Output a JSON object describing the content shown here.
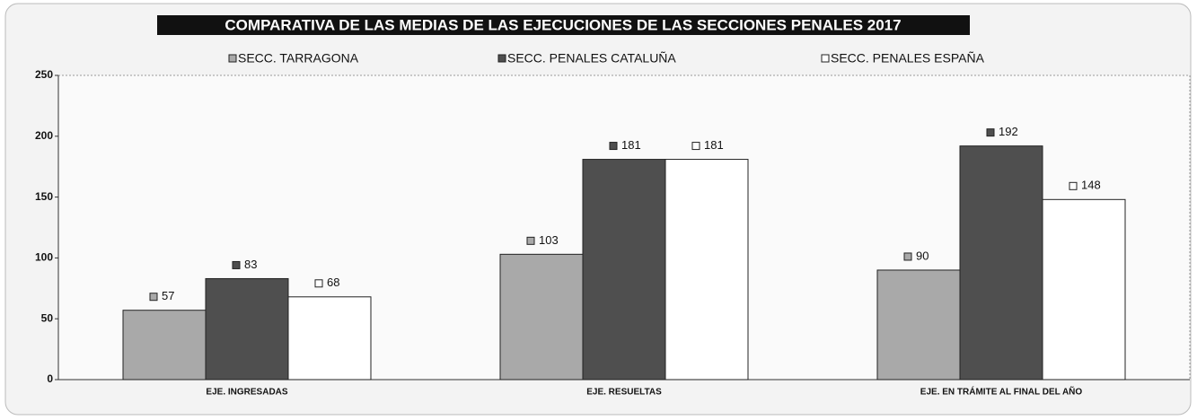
{
  "chart_data": {
    "type": "bar",
    "title": "COMPARATIVA DE LAS MEDIAS DE LAS EJECUCIONES  DE LAS SECCIONES PENALES  2017",
    "categories": [
      "EJE. INGRESADAS",
      "EJE. RESUELTAS",
      "EJE. EN TRÁMITE AL FINAL DEL AÑO"
    ],
    "series": [
      {
        "name": "SECC. TARRAGONA",
        "color": "#a9a9a9",
        "values": [
          57,
          103,
          90
        ]
      },
      {
        "name": "SECC. PENALES CATALUÑA",
        "color": "#4f4f4f",
        "values": [
          83,
          181,
          192
        ]
      },
      {
        "name": "SECC. PENALES ESPAÑA",
        "color": "#ffffff",
        "values": [
          68,
          181,
          148
        ]
      }
    ],
    "ylim": [
      0,
      250
    ],
    "yticks": [
      0,
      50,
      100,
      150,
      200,
      250
    ],
    "grid": false
  }
}
